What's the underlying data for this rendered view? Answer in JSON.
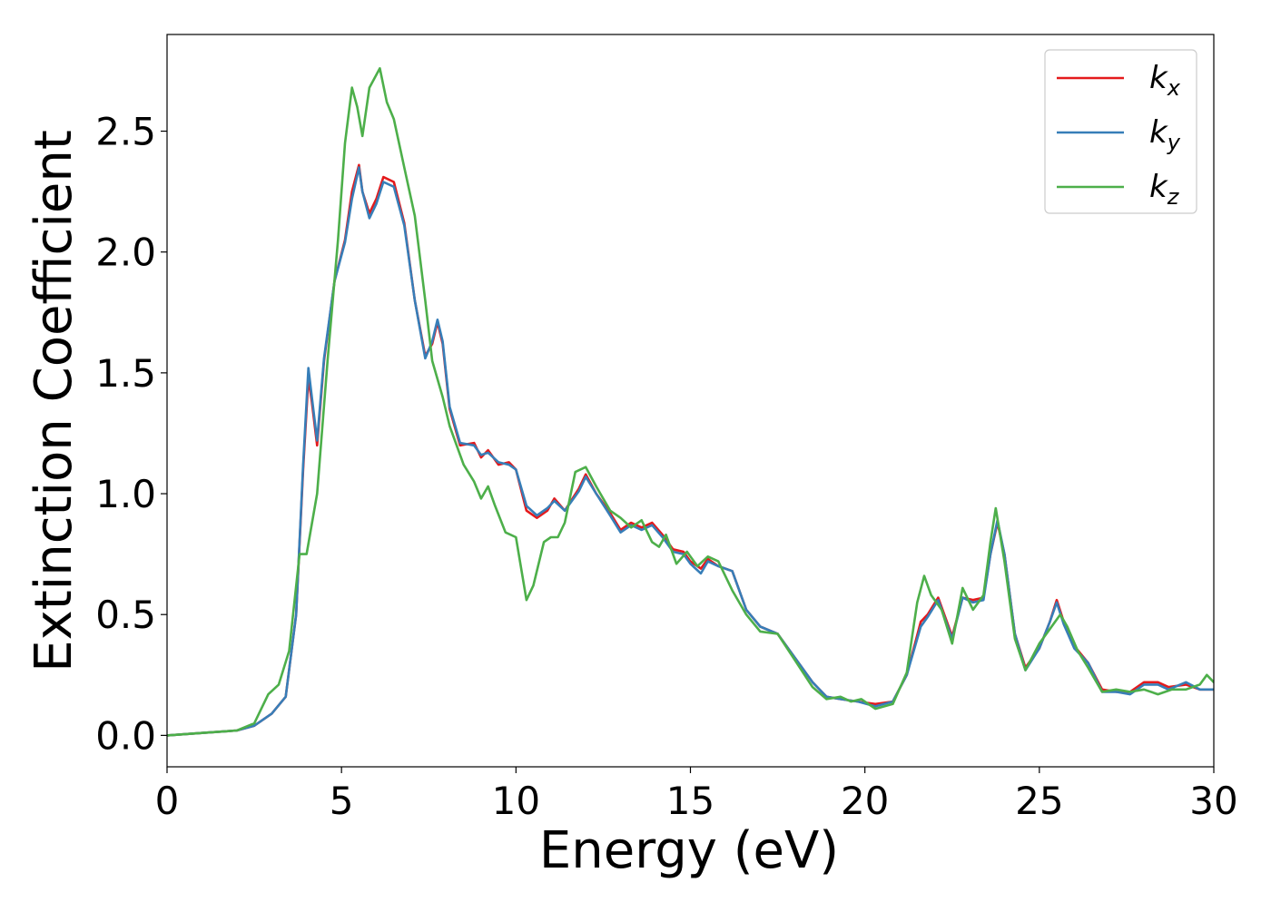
{
  "chart_data": {
    "type": "line",
    "xlabel": "Energy (eV)",
    "ylabel": "Extinction Coefficient",
    "xlim": [
      0,
      30
    ],
    "ylim": [
      -0.13,
      2.9
    ],
    "x_ticks": [
      "0",
      "5",
      "10",
      "15",
      "20",
      "25",
      "30"
    ],
    "x_tick_values": [
      0,
      5,
      10,
      15,
      20,
      25,
      30
    ],
    "y_ticks": [
      "0.0",
      "0.5",
      "1.0",
      "1.5",
      "2.0",
      "2.5"
    ],
    "y_tick_values": [
      0,
      0.5,
      1.0,
      1.5,
      2.0,
      2.5
    ],
    "grid": false,
    "legend_position": "top-right",
    "series": [
      {
        "name": "k_x",
        "label_base": "k",
        "label_sub": "x",
        "color": "#e41a1c",
        "points": [
          [
            0,
            0
          ],
          [
            1,
            0.01
          ],
          [
            2,
            0.02
          ],
          [
            2.5,
            0.04
          ],
          [
            3,
            0.09
          ],
          [
            3.4,
            0.16
          ],
          [
            3.7,
            0.5
          ],
          [
            3.9,
            1.1
          ],
          [
            4.05,
            1.48
          ],
          [
            4.15,
            1.38
          ],
          [
            4.3,
            1.2
          ],
          [
            4.5,
            1.55
          ],
          [
            4.8,
            1.88
          ],
          [
            5.1,
            2.05
          ],
          [
            5.3,
            2.25
          ],
          [
            5.5,
            2.36
          ],
          [
            5.6,
            2.25
          ],
          [
            5.8,
            2.16
          ],
          [
            6.0,
            2.22
          ],
          [
            6.2,
            2.31
          ],
          [
            6.5,
            2.29
          ],
          [
            6.8,
            2.12
          ],
          [
            7.1,
            1.8
          ],
          [
            7.4,
            1.57
          ],
          [
            7.6,
            1.62
          ],
          [
            7.75,
            1.71
          ],
          [
            7.9,
            1.62
          ],
          [
            8.1,
            1.35
          ],
          [
            8.4,
            1.2
          ],
          [
            8.8,
            1.21
          ],
          [
            9.0,
            1.15
          ],
          [
            9.2,
            1.18
          ],
          [
            9.5,
            1.12
          ],
          [
            9.8,
            1.13
          ],
          [
            10.0,
            1.1
          ],
          [
            10.3,
            0.93
          ],
          [
            10.6,
            0.9
          ],
          [
            10.9,
            0.93
          ],
          [
            11.1,
            0.98
          ],
          [
            11.4,
            0.93
          ],
          [
            11.8,
            1.02
          ],
          [
            12.0,
            1.08
          ],
          [
            12.3,
            1.0
          ],
          [
            12.7,
            0.92
          ],
          [
            13.0,
            0.85
          ],
          [
            13.3,
            0.88
          ],
          [
            13.6,
            0.86
          ],
          [
            13.9,
            0.88
          ],
          [
            14.2,
            0.83
          ],
          [
            14.5,
            0.77
          ],
          [
            14.8,
            0.76
          ],
          [
            15.0,
            0.72
          ],
          [
            15.3,
            0.69
          ],
          [
            15.5,
            0.73
          ],
          [
            15.8,
            0.7
          ],
          [
            16.2,
            0.68
          ],
          [
            16.6,
            0.52
          ],
          [
            17.0,
            0.45
          ],
          [
            17.5,
            0.42
          ],
          [
            18.0,
            0.32
          ],
          [
            18.5,
            0.22
          ],
          [
            18.9,
            0.16
          ],
          [
            19.3,
            0.15
          ],
          [
            19.8,
            0.14
          ],
          [
            20.3,
            0.13
          ],
          [
            20.8,
            0.14
          ],
          [
            21.2,
            0.25
          ],
          [
            21.6,
            0.47
          ],
          [
            21.8,
            0.5
          ],
          [
            22.1,
            0.57
          ],
          [
            22.5,
            0.41
          ],
          [
            22.8,
            0.57
          ],
          [
            23.1,
            0.56
          ],
          [
            23.4,
            0.57
          ],
          [
            23.6,
            0.75
          ],
          [
            23.8,
            0.88
          ],
          [
            24.0,
            0.75
          ],
          [
            24.3,
            0.42
          ],
          [
            24.6,
            0.28
          ],
          [
            25.0,
            0.36
          ],
          [
            25.3,
            0.47
          ],
          [
            25.5,
            0.56
          ],
          [
            25.7,
            0.47
          ],
          [
            26.0,
            0.37
          ],
          [
            26.4,
            0.3
          ],
          [
            26.8,
            0.19
          ],
          [
            27.2,
            0.18
          ],
          [
            27.6,
            0.18
          ],
          [
            28.0,
            0.22
          ],
          [
            28.4,
            0.22
          ],
          [
            28.7,
            0.2
          ],
          [
            29.2,
            0.21
          ],
          [
            29.6,
            0.19
          ],
          [
            30.0,
            0.19
          ]
        ]
      },
      {
        "name": "k_y",
        "label_base": "k",
        "label_sub": "y",
        "color": "#377eb8",
        "points": [
          [
            0,
            0
          ],
          [
            1,
            0.01
          ],
          [
            2,
            0.02
          ],
          [
            2.5,
            0.04
          ],
          [
            3,
            0.09
          ],
          [
            3.4,
            0.16
          ],
          [
            3.7,
            0.5
          ],
          [
            3.9,
            1.12
          ],
          [
            4.05,
            1.52
          ],
          [
            4.15,
            1.4
          ],
          [
            4.3,
            1.22
          ],
          [
            4.5,
            1.56
          ],
          [
            4.8,
            1.88
          ],
          [
            5.1,
            2.04
          ],
          [
            5.3,
            2.22
          ],
          [
            5.5,
            2.35
          ],
          [
            5.6,
            2.25
          ],
          [
            5.8,
            2.14
          ],
          [
            6.0,
            2.2
          ],
          [
            6.2,
            2.29
          ],
          [
            6.5,
            2.27
          ],
          [
            6.8,
            2.11
          ],
          [
            7.1,
            1.8
          ],
          [
            7.4,
            1.56
          ],
          [
            7.6,
            1.63
          ],
          [
            7.75,
            1.72
          ],
          [
            7.9,
            1.63
          ],
          [
            8.1,
            1.36
          ],
          [
            8.4,
            1.21
          ],
          [
            8.8,
            1.2
          ],
          [
            9.0,
            1.16
          ],
          [
            9.2,
            1.17
          ],
          [
            9.5,
            1.13
          ],
          [
            9.8,
            1.12
          ],
          [
            10.0,
            1.1
          ],
          [
            10.3,
            0.95
          ],
          [
            10.6,
            0.91
          ],
          [
            10.9,
            0.94
          ],
          [
            11.1,
            0.97
          ],
          [
            11.4,
            0.93
          ],
          [
            11.8,
            1.01
          ],
          [
            12.0,
            1.07
          ],
          [
            12.3,
            1.0
          ],
          [
            12.7,
            0.91
          ],
          [
            13.0,
            0.84
          ],
          [
            13.3,
            0.87
          ],
          [
            13.6,
            0.85
          ],
          [
            13.9,
            0.87
          ],
          [
            14.2,
            0.82
          ],
          [
            14.5,
            0.76
          ],
          [
            14.8,
            0.75
          ],
          [
            15.0,
            0.71
          ],
          [
            15.3,
            0.67
          ],
          [
            15.5,
            0.72
          ],
          [
            15.8,
            0.7
          ],
          [
            16.2,
            0.68
          ],
          [
            16.6,
            0.52
          ],
          [
            17.0,
            0.45
          ],
          [
            17.5,
            0.42
          ],
          [
            18.0,
            0.32
          ],
          [
            18.5,
            0.22
          ],
          [
            18.9,
            0.16
          ],
          [
            19.3,
            0.15
          ],
          [
            19.8,
            0.14
          ],
          [
            20.3,
            0.12
          ],
          [
            20.8,
            0.14
          ],
          [
            21.2,
            0.25
          ],
          [
            21.6,
            0.45
          ],
          [
            21.8,
            0.49
          ],
          [
            22.1,
            0.56
          ],
          [
            22.5,
            0.4
          ],
          [
            22.8,
            0.57
          ],
          [
            23.1,
            0.55
          ],
          [
            23.4,
            0.56
          ],
          [
            23.6,
            0.75
          ],
          [
            23.8,
            0.89
          ],
          [
            24.0,
            0.75
          ],
          [
            24.3,
            0.42
          ],
          [
            24.6,
            0.27
          ],
          [
            25.0,
            0.36
          ],
          [
            25.3,
            0.47
          ],
          [
            25.5,
            0.55
          ],
          [
            25.7,
            0.46
          ],
          [
            26.0,
            0.36
          ],
          [
            26.4,
            0.3
          ],
          [
            26.8,
            0.18
          ],
          [
            27.2,
            0.18
          ],
          [
            27.6,
            0.17
          ],
          [
            28.0,
            0.21
          ],
          [
            28.4,
            0.21
          ],
          [
            28.7,
            0.19
          ],
          [
            29.2,
            0.22
          ],
          [
            29.6,
            0.19
          ],
          [
            30.0,
            0.19
          ]
        ]
      },
      {
        "name": "k_z",
        "label_base": "k",
        "label_sub": "z",
        "color": "#4daf4a",
        "points": [
          [
            0,
            0
          ],
          [
            1,
            0.01
          ],
          [
            2,
            0.02
          ],
          [
            2.5,
            0.05
          ],
          [
            2.9,
            0.17
          ],
          [
            3.2,
            0.21
          ],
          [
            3.5,
            0.35
          ],
          [
            3.8,
            0.75
          ],
          [
            4.0,
            0.75
          ],
          [
            4.3,
            1.0
          ],
          [
            4.6,
            1.55
          ],
          [
            4.9,
            2.05
          ],
          [
            5.1,
            2.45
          ],
          [
            5.3,
            2.68
          ],
          [
            5.45,
            2.6
          ],
          [
            5.6,
            2.48
          ],
          [
            5.8,
            2.68
          ],
          [
            6.1,
            2.76
          ],
          [
            6.3,
            2.62
          ],
          [
            6.5,
            2.55
          ],
          [
            6.8,
            2.35
          ],
          [
            7.1,
            2.15
          ],
          [
            7.4,
            1.8
          ],
          [
            7.6,
            1.55
          ],
          [
            7.9,
            1.4
          ],
          [
            8.1,
            1.28
          ],
          [
            8.5,
            1.12
          ],
          [
            8.8,
            1.05
          ],
          [
            9.0,
            0.98
          ],
          [
            9.2,
            1.03
          ],
          [
            9.4,
            0.95
          ],
          [
            9.7,
            0.84
          ],
          [
            10.0,
            0.82
          ],
          [
            10.3,
            0.56
          ],
          [
            10.5,
            0.62
          ],
          [
            10.8,
            0.8
          ],
          [
            11.0,
            0.82
          ],
          [
            11.2,
            0.82
          ],
          [
            11.4,
            0.88
          ],
          [
            11.7,
            1.09
          ],
          [
            12.0,
            1.11
          ],
          [
            12.3,
            1.03
          ],
          [
            12.7,
            0.93
          ],
          [
            13.0,
            0.9
          ],
          [
            13.3,
            0.86
          ],
          [
            13.6,
            0.89
          ],
          [
            13.9,
            0.8
          ],
          [
            14.1,
            0.78
          ],
          [
            14.3,
            0.83
          ],
          [
            14.6,
            0.71
          ],
          [
            14.9,
            0.76
          ],
          [
            15.2,
            0.7
          ],
          [
            15.5,
            0.74
          ],
          [
            15.8,
            0.72
          ],
          [
            16.2,
            0.6
          ],
          [
            16.6,
            0.5
          ],
          [
            17.0,
            0.43
          ],
          [
            17.5,
            0.42
          ],
          [
            18.0,
            0.31
          ],
          [
            18.5,
            0.2
          ],
          [
            18.9,
            0.15
          ],
          [
            19.3,
            0.16
          ],
          [
            19.6,
            0.14
          ],
          [
            19.9,
            0.15
          ],
          [
            20.3,
            0.11
          ],
          [
            20.8,
            0.13
          ],
          [
            21.2,
            0.26
          ],
          [
            21.5,
            0.55
          ],
          [
            21.7,
            0.66
          ],
          [
            21.9,
            0.58
          ],
          [
            22.2,
            0.52
          ],
          [
            22.5,
            0.38
          ],
          [
            22.8,
            0.61
          ],
          [
            23.1,
            0.52
          ],
          [
            23.4,
            0.58
          ],
          [
            23.6,
            0.8
          ],
          [
            23.75,
            0.94
          ],
          [
            24.0,
            0.72
          ],
          [
            24.3,
            0.4
          ],
          [
            24.6,
            0.27
          ],
          [
            25.0,
            0.38
          ],
          [
            25.3,
            0.44
          ],
          [
            25.6,
            0.5
          ],
          [
            25.8,
            0.45
          ],
          [
            26.1,
            0.35
          ],
          [
            26.4,
            0.28
          ],
          [
            26.8,
            0.18
          ],
          [
            27.2,
            0.19
          ],
          [
            27.6,
            0.18
          ],
          [
            28.0,
            0.19
          ],
          [
            28.4,
            0.17
          ],
          [
            28.8,
            0.19
          ],
          [
            29.2,
            0.19
          ],
          [
            29.6,
            0.21
          ],
          [
            29.8,
            0.25
          ],
          [
            30.0,
            0.22
          ]
        ]
      }
    ]
  }
}
